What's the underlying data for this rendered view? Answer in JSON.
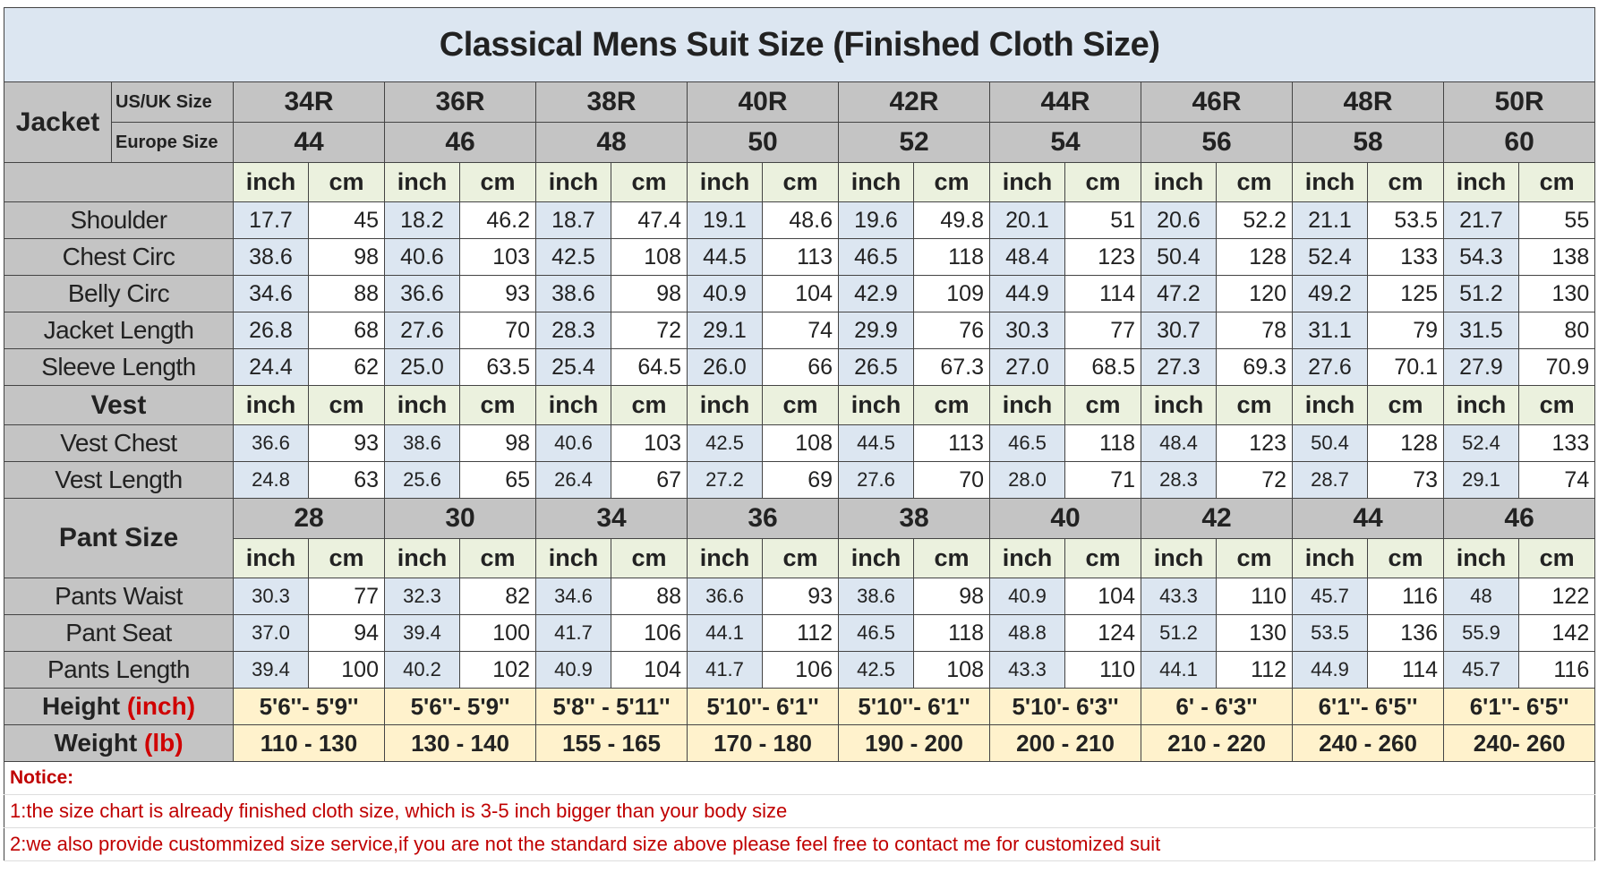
{
  "title": "Classical Mens Suit Size (Finished Cloth Size)",
  "units": [
    "inch",
    "cm"
  ],
  "jacket": {
    "label": "Jacket",
    "us_label": "US/UK Size",
    "eu_label": "Europe Size",
    "us_sizes": [
      "34R",
      "36R",
      "38R",
      "40R",
      "42R",
      "44R",
      "46R",
      "48R",
      "50R"
    ],
    "eu_sizes": [
      "44",
      "46",
      "48",
      "50",
      "52",
      "54",
      "56",
      "58",
      "60"
    ],
    "rows": [
      {
        "label": "Shoulder",
        "values": [
          "17.7",
          "45",
          "18.2",
          "46.2",
          "18.7",
          "47.4",
          "19.1",
          "48.6",
          "19.6",
          "49.8",
          "20.1",
          "51",
          "20.6",
          "52.2",
          "21.1",
          "53.5",
          "21.7",
          "55"
        ]
      },
      {
        "label": "Chest Circ",
        "values": [
          "38.6",
          "98",
          "40.6",
          "103",
          "42.5",
          "108",
          "44.5",
          "113",
          "46.5",
          "118",
          "48.4",
          "123",
          "50.4",
          "128",
          "52.4",
          "133",
          "54.3",
          "138"
        ]
      },
      {
        "label": "Belly Circ",
        "values": [
          "34.6",
          "88",
          "36.6",
          "93",
          "38.6",
          "98",
          "40.9",
          "104",
          "42.9",
          "109",
          "44.9",
          "114",
          "47.2",
          "120",
          "49.2",
          "125",
          "51.2",
          "130"
        ]
      },
      {
        "label": "Jacket Length",
        "values": [
          "26.8",
          "68",
          "27.6",
          "70",
          "28.3",
          "72",
          "29.1",
          "74",
          "29.9",
          "76",
          "30.3",
          "77",
          "30.7",
          "78",
          "31.1",
          "79",
          "31.5",
          "80"
        ]
      },
      {
        "label": "Sleeve Length",
        "values": [
          "24.4",
          "62",
          "25.0",
          "63.5",
          "25.4",
          "64.5",
          "26.0",
          "66",
          "26.5",
          "67.3",
          "27.0",
          "68.5",
          "27.3",
          "69.3",
          "27.6",
          "70.1",
          "27.9",
          "70.9"
        ]
      }
    ]
  },
  "vest": {
    "label": "Vest",
    "rows": [
      {
        "label": "Vest Chest",
        "values": [
          "36.6",
          "93",
          "38.6",
          "98",
          "40.6",
          "103",
          "42.5",
          "108",
          "44.5",
          "113",
          "46.5",
          "118",
          "48.4",
          "123",
          "50.4",
          "128",
          "52.4",
          "133"
        ]
      },
      {
        "label": "Vest Length",
        "values": [
          "24.8",
          "63",
          "25.6",
          "65",
          "26.4",
          "67",
          "27.2",
          "69",
          "27.6",
          "70",
          "28.0",
          "71",
          "28.3",
          "72",
          "28.7",
          "73",
          "29.1",
          "74"
        ]
      }
    ]
  },
  "pant": {
    "label": "Pant Size",
    "sizes": [
      "28",
      "30",
      "34",
      "36",
      "38",
      "40",
      "42",
      "44",
      "46"
    ],
    "rows": [
      {
        "label": "Pants Waist",
        "values": [
          "30.3",
          "77",
          "32.3",
          "82",
          "34.6",
          "88",
          "36.6",
          "93",
          "38.6",
          "98",
          "40.9",
          "104",
          "43.3",
          "110",
          "45.7",
          "116",
          "48",
          "122"
        ]
      },
      {
        "label": "Pant Seat",
        "values": [
          "37.0",
          "94",
          "39.4",
          "100",
          "41.7",
          "106",
          "44.1",
          "112",
          "46.5",
          "118",
          "48.8",
          "124",
          "51.2",
          "130",
          "53.5",
          "136",
          "55.9",
          "142"
        ]
      },
      {
        "label": "Pants Length",
        "values": [
          "39.4",
          "100",
          "40.2",
          "102",
          "40.9",
          "104",
          "41.7",
          "106",
          "42.5",
          "108",
          "43.3",
          "110",
          "44.1",
          "112",
          "44.9",
          "114",
          "45.7",
          "116"
        ]
      }
    ]
  },
  "height": {
    "label": "Height",
    "unit": "(inch)",
    "values": [
      "5'6''- 5'9''",
      "5'6''- 5'9''",
      "5'8'' - 5'11''",
      "5'10''- 6'1''",
      "5'10''- 6'1''",
      "5'10'- 6'3''",
      "6' - 6'3''",
      "6'1''- 6'5''",
      "6'1''- 6'5''"
    ]
  },
  "weight": {
    "label": "Weight",
    "unit": "(lb)",
    "values": [
      "110 - 130",
      "130 - 140",
      "155 - 165",
      "170 - 180",
      "190 - 200",
      "200 - 210",
      "210 - 220",
      "240 - 260",
      "240- 260"
    ]
  },
  "notice": {
    "title": "Notice:",
    "lines": [
      "1:the size chart is already finished cloth size, which is 3-5 inch bigger than your body size",
      "2:we also provide custommized size service,if you are not the standard size above please feel free to contact me for customized suit"
    ]
  }
}
